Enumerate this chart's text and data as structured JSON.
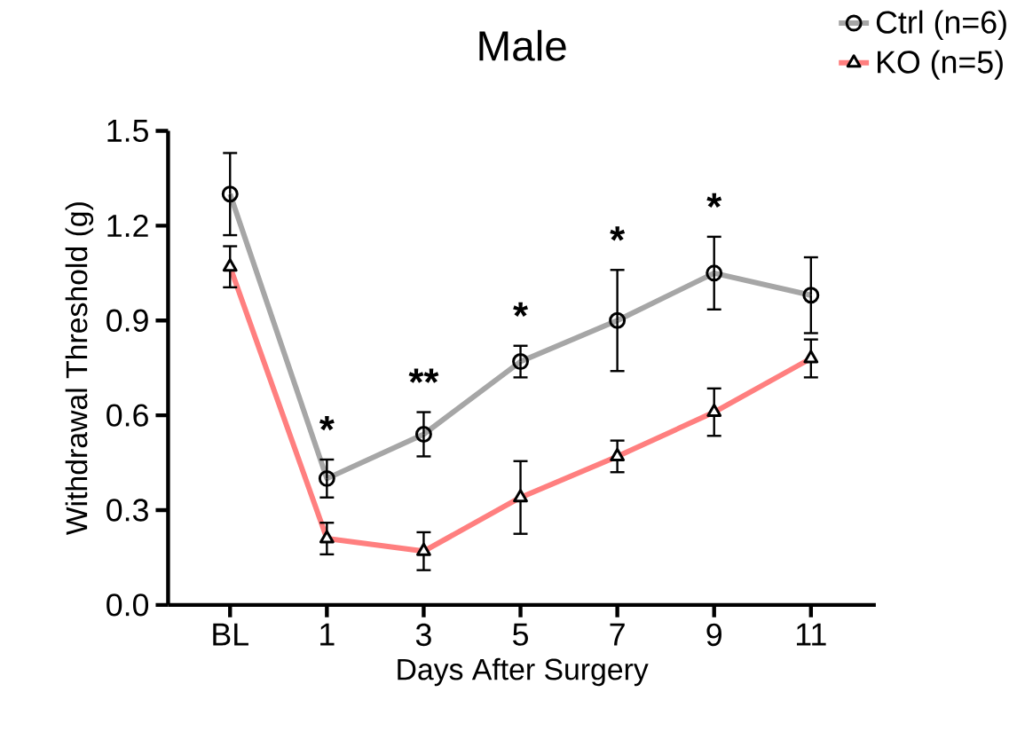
{
  "chart_data": {
    "type": "line",
    "title": "Male",
    "xlabel": "Days After Surgery",
    "ylabel": "Withdrawal Threshold (g)",
    "categories": [
      "BL",
      "1",
      "3",
      "5",
      "7",
      "9",
      "11"
    ],
    "series": [
      {
        "name": "Ctrl (n=6)",
        "color": "#a6a6a6",
        "marker": "circle",
        "values": [
          1.3,
          0.4,
          0.54,
          0.77,
          0.9,
          1.05,
          0.98
        ],
        "errors": [
          0.13,
          0.06,
          0.07,
          0.05,
          0.16,
          0.115,
          0.12
        ]
      },
      {
        "name": "KO (n=5)",
        "color": "#ff7f7f",
        "marker": "triangle",
        "values": [
          1.07,
          0.21,
          0.17,
          0.34,
          0.47,
          0.61,
          0.78
        ],
        "errors": [
          0.065,
          0.05,
          0.06,
          0.115,
          0.05,
          0.075,
          0.06
        ]
      }
    ],
    "ylim": [
      0,
      1.5
    ],
    "yticks": [
      {
        "value": 0,
        "label": "0.0"
      },
      {
        "value": 0.3,
        "label": "0.3"
      },
      {
        "value": 0.6,
        "label": "0.6"
      },
      {
        "value": 0.9,
        "label": "0.9"
      },
      {
        "value": 1.2,
        "label": "1.2"
      },
      {
        "value": 1.5,
        "label": "1.5"
      }
    ],
    "annotations": [
      "*",
      "**",
      "*",
      "*",
      "*"
    ],
    "grid": false,
    "legend": "top right",
    "line_style": "solid"
  }
}
